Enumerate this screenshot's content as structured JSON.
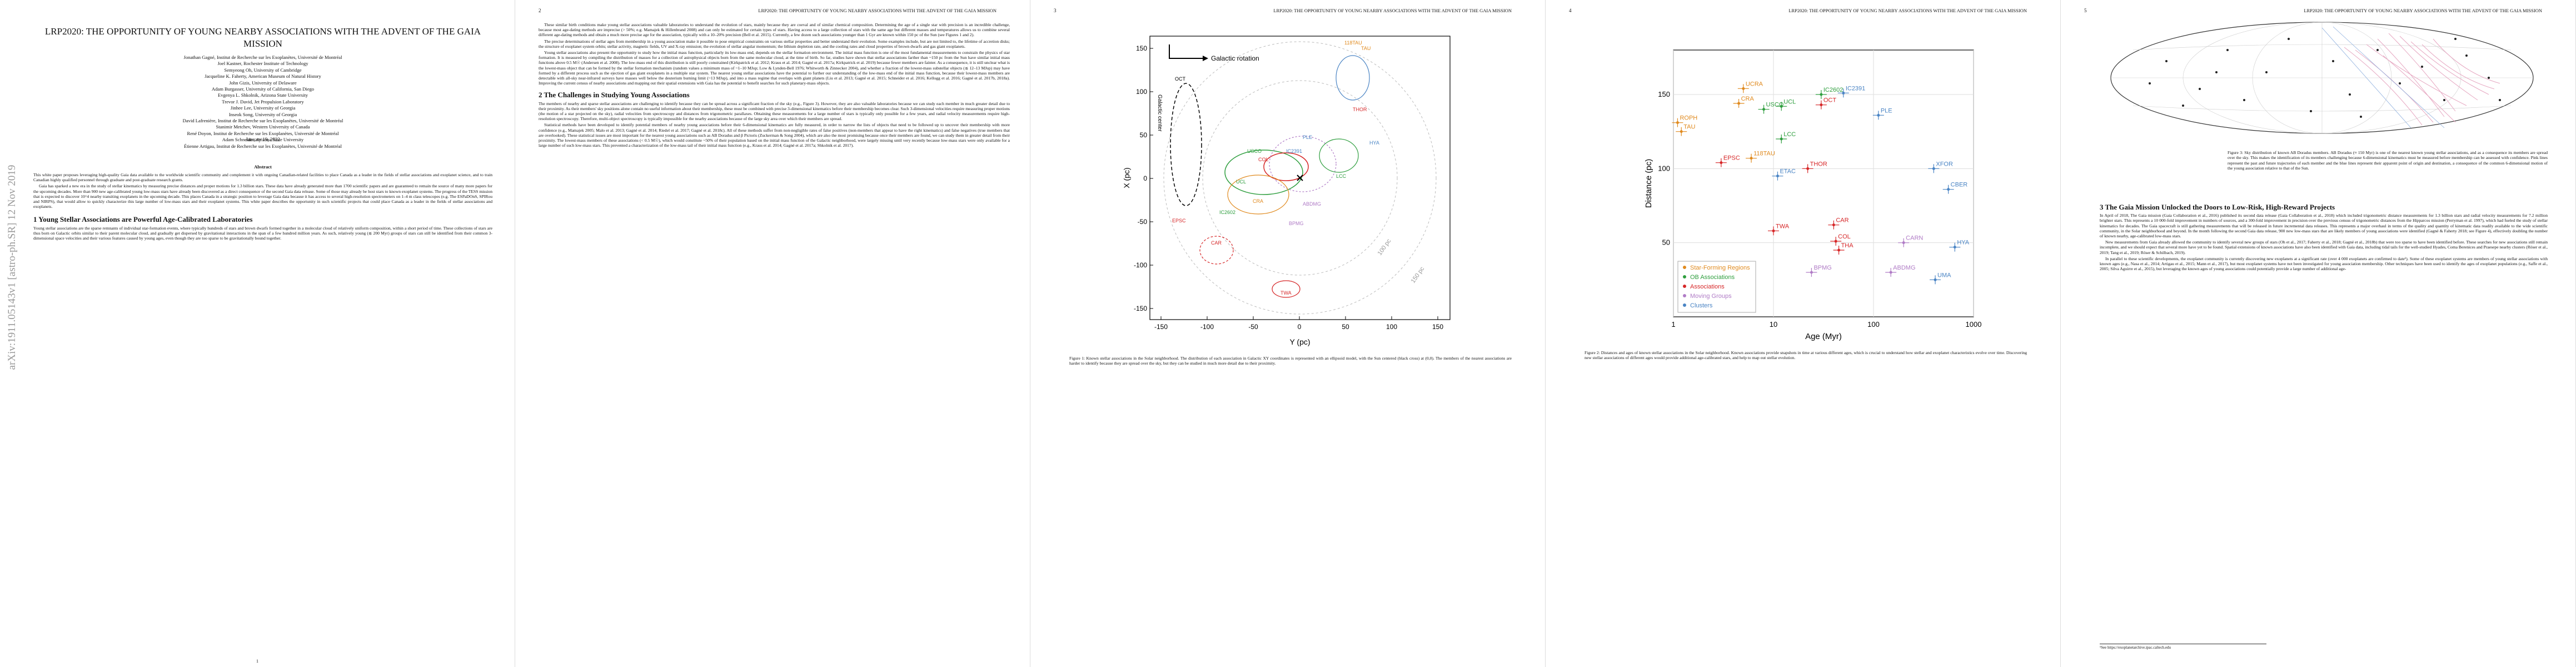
{
  "running_head": "LRP2020: THE OPPORTUNITY OF YOUNG NEARBY ASSOCIATIONS WITH THE ADVENT OF THE GAIA MISSION",
  "arxiv_stamp": "arXiv:1911.05143v1  [astro-ph.SR]  12 Nov 2019",
  "page_numbers": [
    "1",
    "2",
    "3",
    "4",
    "5"
  ],
  "title": "LRP2020: THE OPPORTUNITY OF YOUNG NEARBY ASSOCIATIONS WITH THE ADVENT OF THE GAIA MISSION",
  "authors": [
    "Jonathan Gagné, Institut de Recherche sur les Exoplanètes, Université de Montréal",
    "Joel Kastner, Rochester Institute of Technology",
    "Semyeong Oh, University of Cambridge",
    "Jacqueline K. Faherty, American Museum of Natural History",
    "John Gizis, University of Delaware",
    "Adam Burgasser, University of California, San Diego",
    "Evgenya L. Shkolnik, Arizona State University",
    "Trevor J. David, Jet Propulsion Laboratory",
    "Jinhee Lee, University of Georgia",
    "Inseok Song, University of Georgia",
    "David Lafrenière, Institut de Recherche sur les Exoplanètes, Université de Montréal",
    "Stanimir Metchev, Western University of Canada",
    "René Doyon, Institut de Recherche sur les Exoplanètes, Université de Montréal",
    "Adam Schneider, Arizona State University",
    "Étienne Artigau, Institut de Recherche sur les Exoplanètes, Université de Montréal"
  ],
  "date": "January 19, 2022",
  "abstract_heading": "Abstract",
  "abstract": [
    "This white paper proposes leveraging high-quality Gaia data available to the worldwide scientific community and complement it with ongoing Canadian-related facilities to place Canada as a leader in the fields of stellar associations and exoplanet science, and to train Canadian highly qualified personnel through graduate and post-graduate research grants.",
    "Gaia has sparked a new era in the study of stellar kinematics by measuring precise distances and proper motions for 1.3 billion stars. These data have already generated more than 1700 scientific papers and are guaranteed to remain the source of many more papers for the upcoming decades. More than 900 new age-calibrated young low-mass stars have already been discovered as a direct consequence of the second Gaia data release. Some of those may already be host stars to known exoplanet systems. The progress of the TESS mission that is expected to discover 10^4 nearby transiting exoplanets in the upcoming decade. This places Canada in a strategic position to leverage Gaia data because it has access to several high-resolution spectrometers on 1–4 m class telescopes (e.g. The ESPaDOnS, SPIRou and NIRPS), that would allow to quickly characterize this large number of low-mass stars and their exoplanet systems. This white paper describes the opportunity in such scientific projects that could place Canada as a leader in the fields of stellar associations and exoplanets."
  ],
  "sec1_title": "1   Young Stellar Associations are Powerful Age-Calibrated Laboratories",
  "sec1_text": "Young stellar associations are the sparse remnants of individual star-formation events, where typically hundreds of stars and brown dwarfs formed together in a molecular cloud of relatively uniform composition, within a short period of time. These collections of stars are thus born on Galactic orbits similar to their parent molecular cloud, and gradually get dispersed by gravitational interactions in the span of a few hundred million years. As such, relatively young (≲ 200 Myr) groups of stars can still be identified from their common 3-dimensional space velocities and their various features caused by young ages, even though they are too sparse to be gravitationally bound together.",
  "p2_intro": [
    "These similar birth conditions make young stellar associations valuable laboratories to understand the evolution of stars, mainly because they are coeval and of similar chemical composition. Determining the age of a single star with precision is an incredible challenge, because most age-dating methods are imprecise (> 50%; e.g. Mamajek & Hillenbrand 2008) and can only be estimated for certain types of stars. Having access to a large collection of stars with the same age but different masses and temperatures allows us to combine several different age-dating methods and obtain a much more precise age for the association, typically with a 10–20% precision (Bell et al. 2015). Currently, a few dozen such associations younger than 1 Gyr are known within 150 pc of the Sun (see Figures 1 and 2).",
    "The precise determinations of stellar ages from membership in a young association make it possible to pose empirical constraints on various stellar properties and better understand their evolution. Some examples include, but are not limited to, the lifetime of accretion disks; the structure of exoplanet system orbits; stellar activity, magnetic fields, UV and X-ray emission; the evolution of stellar angular momentum; the lithium depletion rate, and the cooling rates and cloud properties of brown dwarfs and gas giant exoplanets.",
    "Young stellar associations also present the opportunity to study how the initial mass function, particularly its low-mass end, depends on the stellar formation environment. The initial mass function is one of the most fundamental measurements to constrain the physics of star formation. It is measured by compiling the distribution of masses for a collection of astrophysical objects born from the same molecular cloud, at the time of birth. So far, studies have shown that stellar associations farther than ~150 pc from the Sun have similar initial mass functions above 0.5 M☉ (Andersen et al. 2008). The low-mass end of this distribution is still poorly constrained (Kirkpatrick et al. 2012; Kraus et al. 2014; Gagné et al. 2017a; Kirkpatrick et al. 2019) because fewer members are fainter. As a consequence, it is still unclear what is the lowest-mass object that can be formed by the stellar formation mechanism (random values a minimum mass of ~1–10 MJup; Low & Lynden-Bell 1976; Whitworth & Zinnecker 2004), and whether a fraction of the lowest-mass substellar objects (≲ 12–13 MJup) may have formed by a different process such as the ejection of gas giant exoplanets in a multiple star system. The nearest young stellar associations have the potential to further our understanding of the low-mass end of the initial mass function, because their lowest-mass members are detectable with all-sky near-infrared surveys have masses well below the deuterium burning limit (~13 MJup), and into a mass regime that overlaps with giant planets (Liu et al. 2013; Gagné et al. 2015; Schneider et al. 2016; Kellogg et al. 2016; Gagné et al. 2017b, 2018a). Improving the current census of nearby associations and mapping out their spatial extensions with Gaia has the potential to benefit searches for such planetary-mass objects."
  ],
  "sec2_title": "2   The Challenges in Studying Young Associations",
  "sec2_text": [
    "The members of nearby and sparse stellar associations are challenging to identify because they can be spread across a significant fraction of the sky (e.g., Figure 3). However, they are also valuable laboratories because we can study each member in much greater detail due to their proximity. As their members' sky positions alone contain no useful information about their membership, these must be combined with precise 3-dimensional kinematics before their membership becomes clear. Such 3-dimensional velocities require measuring proper motions (the motion of a star projected on the sky), radial velocities from spectroscopy and distances from trigonometric parallaxes. Obtaining these measurements for a large number of stars is typically only possible for a few years, and radial velocity measurements require high-resolution spectroscopy. Therefore, multi-object spectroscopy is typically impossible for the nearby associations because of the large sky area over which their members are spread.",
    "Statistical methods have been developed to identify potential members of nearby young associations before their 6-dimensional kinematics are fully measured, in order to narrow the lists of objects that need to be followed up to uncover their membership with more confidence (e.g., Mamajek 2005; Malo et al. 2013; Gagné et al. 2014; Riedel et al. 2017; Gagné et al. 2018c). All of these methods suffer from non-negligible rates of false positives (non-members that appear to have the right kinematics) and false negatives (true members that are overlooked). These statistical issues are most important for the nearest young associations such as AB Doradus and β Pictoris (Zuckerman & Song 2004), which are also the most promising because once their members are found, we can study them in greater detail from their proximity. The lowest-mass members of these associations (< 0.5 M☉), which would constitute ~50% of their population based on the initial mass function of the Galactic neighborhood, were largely missing until very recently because low-mass stars were only available for a large number of such low-mass stars. This prevented a characterization of the low-mass tail of their initial mass function (e.g., Kraus et al. 2014; Gagné et al. 2017a; Shkolnik et al. 2017)."
  ],
  "fig1": {
    "caption": "Figure 1: Known stellar associations in the Solar neighborhood. The distribution of each association in Galactic XY coordinates is represented with an ellipsoid model, with the Sun centered (black cross) at (0,0). The members of the nearest associations are harder to identify because they are spread over the sky, but they can be studied in much more detail due to their proximity.",
    "galactic_rotation_label": "Galactic rotation",
    "galactic_center_label": "Galactic center",
    "xlabel": "Y (pc)",
    "ylabel": "X (pc)",
    "xticks": [
      "-150",
      "-100",
      "-50",
      "0",
      "50",
      "100",
      "150"
    ],
    "yticks": [
      "-150",
      "-100",
      "-50",
      "0",
      "50",
      "100",
      "150"
    ],
    "ring_labels": [
      "100 pc",
      "150 pc"
    ],
    "group_labels": [
      "118TAU",
      "TAU",
      "THOR",
      "OCT",
      "HYA",
      "IC2391",
      "PLE",
      "UCL",
      "LCC",
      "CAR",
      "TWA",
      "COL",
      "ABDMG",
      "BPMG",
      "USCO",
      "CRA",
      "EPSC",
      "IC2602"
    ]
  },
  "chart_data": {
    "type": "scatter",
    "title": "",
    "xlabel": "Age (Myr)",
    "ylabel": "Distance (pc)",
    "xscale": "log",
    "xlim": [
      1,
      1000
    ],
    "ylim": [
      0,
      180
    ],
    "xticks": [
      "1",
      "10",
      "100",
      "1000"
    ],
    "yticks": [
      "50",
      "100",
      "150"
    ],
    "legend": [
      "Star-Forming Regions",
      "OB Associations",
      "Associations",
      "Moving Groups",
      "Clusters"
    ],
    "legend_colors": [
      "#e08a1e",
      "#2e9e3e",
      "#d62728",
      "#b07cc6",
      "#4a84c4"
    ],
    "series": [
      {
        "name": "Star-Forming Regions",
        "color": "#e08a1e",
        "points": [
          {
            "label": "ROPH",
            "x": 1.1,
            "y": 131
          },
          {
            "label": "TAU",
            "x": 1.2,
            "y": 125
          },
          {
            "label": "CRA",
            "x": 4.5,
            "y": 144
          },
          {
            "label": "UCRA",
            "x": 5,
            "y": 154
          },
          {
            "label": "118TAU",
            "x": 6,
            "y": 107
          }
        ]
      },
      {
        "name": "OB Associations",
        "color": "#2e9e3e",
        "points": [
          {
            "label": "USCO",
            "x": 8,
            "y": 140
          },
          {
            "label": "UCL",
            "x": 12,
            "y": 142
          },
          {
            "label": "LCC",
            "x": 12,
            "y": 120
          },
          {
            "label": "IC2602",
            "x": 30,
            "y": 150
          }
        ]
      },
      {
        "name": "Associations",
        "color": "#d62728",
        "points": [
          {
            "label": "EPSC",
            "x": 3,
            "y": 104
          },
          {
            "label": "TWA",
            "x": 10,
            "y": 58
          },
          {
            "label": "OCT",
            "x": 30,
            "y": 143
          },
          {
            "label": "THOR",
            "x": 22,
            "y": 100
          },
          {
            "label": "COL",
            "x": 42,
            "y": 51
          },
          {
            "label": "CAR",
            "x": 40,
            "y": 62
          },
          {
            "label": "THA",
            "x": 45,
            "y": 45
          }
        ]
      },
      {
        "name": "Moving Groups",
        "color": "#b07cc6",
        "points": [
          {
            "label": "BPMG",
            "x": 24,
            "y": 30
          },
          {
            "label": "ABDMG",
            "x": 149,
            "y": 30
          },
          {
            "label": "CARN",
            "x": 200,
            "y": 50
          }
        ]
      },
      {
        "name": "Clusters",
        "color": "#4a84c4",
        "points": [
          {
            "label": "IC2391",
            "x": 50,
            "y": 151
          },
          {
            "label": "PLE",
            "x": 112,
            "y": 136
          },
          {
            "label": "XFOR",
            "x": 400,
            "y": 100
          },
          {
            "label": "CBER",
            "x": 560,
            "y": 86
          },
          {
            "label": "HYA",
            "x": 650,
            "y": 47
          },
          {
            "label": "UMA",
            "x": 414,
            "y": 25
          },
          {
            "label": "ETAC",
            "x": 11,
            "y": 95
          }
        ]
      }
    ]
  },
  "fig2_caption": "Figure 2: Distances and ages of known stellar associations in the Solar neighborhood. Known associations provide snapshots in time at various different ages, which is crucial to understand how stellar and exoplanet characteristics evolve over time. Discovering new stellar associations of different ages would provide additional age-calibrated stars, and help to map out stellar evolution.",
  "fig3_caption": "Figure 3: Sky distribution of known AB Doradus members. AB Doradus (≈ 150 Myr) is one of the nearest known young stellar associations, and as a consequence its members are spread over the sky. This makes the identification of its members challenging because 6-dimensional kinematics must be measured before membership can be assessed with confidence. Pink lines represent the past and future trajectories of each member and the blue lines represent their apparent point of origin and destination, a consequence of the common 6-dimensional motion of the young association relative to that of the Sun.",
  "sec3_title": "3   The Gaia Mission Unlocked the Doors to Low-Risk, High-Reward Projects",
  "sec3_text": [
    "In April of 2018, The Gaia mission (Gaia Collaboration et al., 2016) published its second data release (Gaia Collaboration et al., 2018) which included trigonometric distance measurements for 1.3 billion stars and radial velocity measurements for 7.2 million brighter stars. This represents a 10 000-fold improvement in numbers of sources, and a 300-fold improvement in precision over the previous census of trigonometric distances from the Hipparcos mission (Perryman et al. 1997), which had fueled the study of stellar kinematics for decades. The Gaia spacecraft is still gathering measurements that will be released in future incremental data releases. This represents a major overhaul in terms of the quality and quantity of kinematic data readily available to the wide scientific community, in the Solar neighborhood and beyond. In the month following the second Gaia data release, 900 new low-mass stars that are likely members of young associations were identified (Gagné & Faherty 2018; see Figure 4), effectively doubling the number of known nearby, age-calibrated low-mass stars.",
    "New measurements from Gaia already allowed the community to identify several new groups of stars (Oh et al., 2017; Faherty et al., 2018; Gagné et al., 2018b) that were too sparse to have been identified before. These searches for new associations still remain incomplete, and we should expect that several more have yet to be found. Spatial extensions of known associations have also been identified with Gaia data, including tidal tails for the well-studied Hyades, Coma Berenices and Praesepe nearby clusters (Röser et al., 2019; Tang et al., 2019; Röser & Schilbach, 2019).",
    "In parallel to these scientific developments, the exoplanet community is currently discovering new exoplanets at a significant rate (over 4 000 exoplanets are confirmed to date¹). Some of these exoplanet systems are members of young stellar associations with known ages (e.g., Nasa et al., 2014; Artigau et al., 2015; Mann et al., 2017), but most exoplanet systems have not been investigated for young association membership. Other techniques have been used to identify the ages of exoplanet populations (e.g., Saffe et al., 2005; Silva Aguirre et al., 2015), but leveraging the known ages of young associations could potentially provide a large number of additional age-"
  ],
  "footnote": "¹See https://exoplanetarchive.ipac.caltech.edu"
}
